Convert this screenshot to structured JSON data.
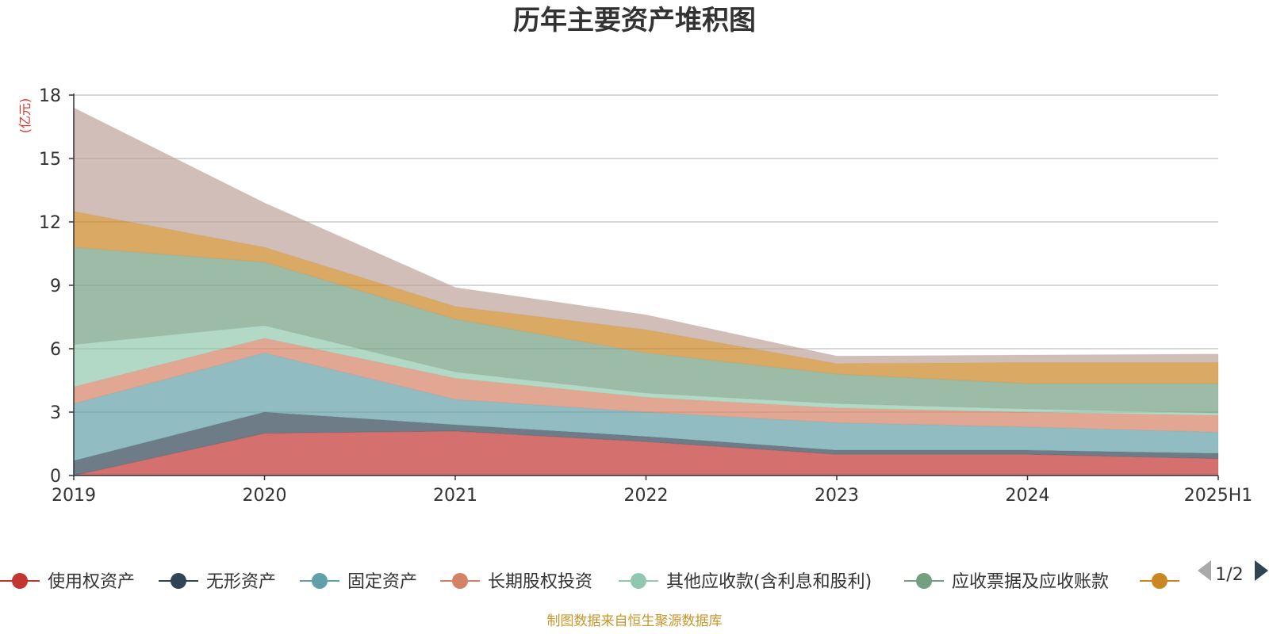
{
  "chart_data": {
    "type": "area",
    "stacked": true,
    "title": "历年主要资产堆积图",
    "unit_label": "(亿元)",
    "x": [
      "2019",
      "2020",
      "2021",
      "2022",
      "2023",
      "2024",
      "2025H1"
    ],
    "ylim": [
      0,
      18
    ],
    "yticks": [
      0,
      3,
      6,
      9,
      12,
      15,
      18
    ],
    "grid": true,
    "legend_position": "bottom",
    "series": [
      {
        "name": "使用权资产",
        "color": "#c23531",
        "values": [
          0.0,
          2.0,
          2.1,
          1.6,
          1.0,
          1.0,
          0.8
        ]
      },
      {
        "name": "无形资产",
        "color": "#2f4554",
        "values": [
          0.7,
          1.0,
          0.3,
          0.25,
          0.2,
          0.2,
          0.25
        ]
      },
      {
        "name": "固定资产",
        "color": "#61a0a8",
        "values": [
          2.7,
          2.8,
          1.2,
          1.15,
          1.3,
          1.1,
          1.0
        ]
      },
      {
        "name": "长期股权投资",
        "color": "#d48265",
        "values": [
          0.8,
          0.7,
          1.0,
          0.7,
          0.7,
          0.7,
          0.8
        ]
      },
      {
        "name": "其他应收款(含利息和股利)",
        "color": "#91c7ae",
        "values": [
          2.0,
          0.6,
          0.3,
          0.2,
          0.2,
          0.15,
          0.1
        ]
      },
      {
        "name": "应收票据及应收账款",
        "color": "#749f83",
        "values": [
          4.6,
          3.0,
          2.5,
          1.9,
          1.4,
          1.2,
          1.4
        ]
      },
      {
        "name": "",
        "color": "#ca8622",
        "values": [
          1.7,
          0.7,
          0.6,
          1.1,
          0.5,
          1.0,
          1.0
        ]
      },
      {
        "name": "",
        "color": "#bda29a",
        "values": [
          4.9,
          2.1,
          0.9,
          0.7,
          0.35,
          0.35,
          0.4
        ]
      }
    ]
  },
  "legend": {
    "page_label": "1/2"
  },
  "footer": {
    "source_text": "制图数据来自恒生聚源数据库"
  }
}
